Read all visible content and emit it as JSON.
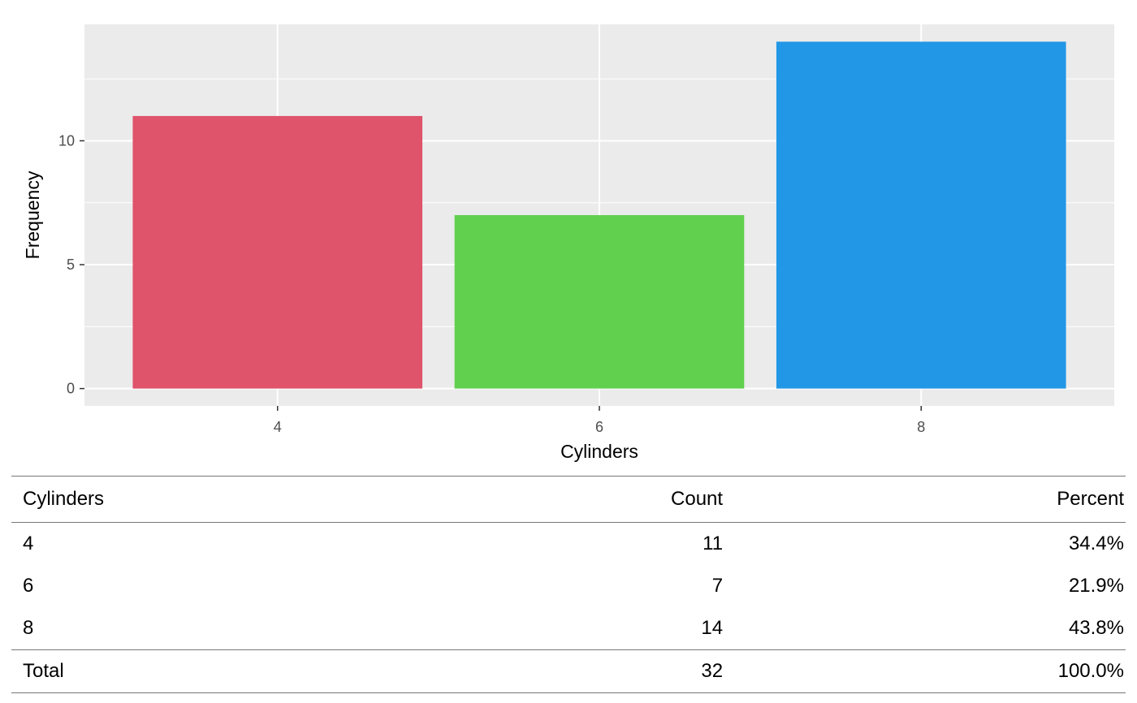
{
  "chart_data": {
    "type": "bar",
    "categories": [
      "4",
      "6",
      "8"
    ],
    "values": [
      11,
      7,
      14
    ],
    "colors": [
      "#DF536B",
      "#61D04F",
      "#2297E6"
    ],
    "title": "",
    "xlabel": "Cylinders",
    "ylabel": "Frequency",
    "ylim": [
      -0.7,
      14.7
    ],
    "yticks": [
      0,
      5,
      10
    ],
    "y_minor_ticks": [
      2.5,
      7.5,
      12.5
    ],
    "grid": true,
    "legend": "none",
    "panel_background": "#EBEBEB",
    "grid_color": "#FFFFFF"
  },
  "table": {
    "headers": {
      "name": "Cylinders",
      "count": "Count",
      "percent": "Percent"
    },
    "rows": [
      {
        "name": "4",
        "count": "11",
        "percent": "34.4%"
      },
      {
        "name": "6",
        "count": "7",
        "percent": "21.9%"
      },
      {
        "name": "8",
        "count": "14",
        "percent": "43.8%"
      }
    ],
    "total": {
      "name": "Total",
      "count": "32",
      "percent": "100.0%"
    }
  }
}
